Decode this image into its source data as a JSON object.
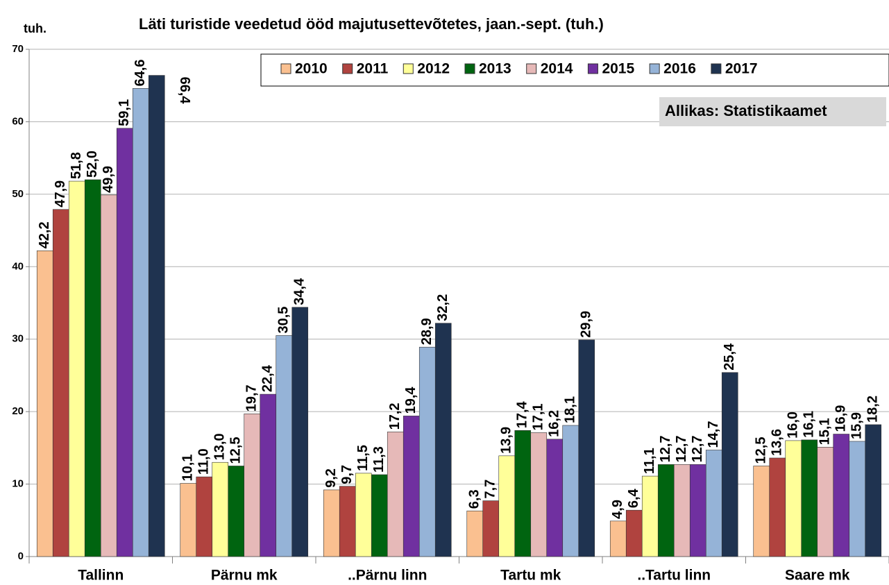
{
  "chart_data": {
    "type": "bar",
    "title": "Läti turistide veedetud ööd majutusettevõtetes, jaan.-sept. (tuh.)",
    "y_axis_label": "tuh.",
    "note": "Allikas: Statistikaamet",
    "categories": [
      "Tallinn",
      "Pärnu mk",
      "..Pärnu linn",
      "Tartu mk",
      "..Tartu linn",
      "Saare mk"
    ],
    "series": [
      {
        "name": "2010",
        "color": "#fac090",
        "values": [
          42.2,
          10.1,
          9.2,
          6.3,
          4.9,
          12.5
        ],
        "value_labels": [
          "42,2",
          "10,1",
          "9,2",
          "6,3",
          "4,9",
          "12,5"
        ]
      },
      {
        "name": "2011",
        "color": "#b0433f",
        "values": [
          47.9,
          11.0,
          9.7,
          7.7,
          6.4,
          13.6
        ],
        "value_labels": [
          "47,9",
          "11,0",
          "9,7",
          "7,7",
          "6,4",
          "13,6"
        ]
      },
      {
        "name": "2012",
        "color": "#ffff99",
        "values": [
          51.8,
          13.0,
          11.5,
          13.9,
          11.1,
          16.0
        ],
        "value_labels": [
          "51,8",
          "13,0",
          "11,5",
          "13,9",
          "11,1",
          "16,0"
        ]
      },
      {
        "name": "2013",
        "color": "#006410",
        "values": [
          52.0,
          12.5,
          11.3,
          17.4,
          12.7,
          16.1
        ],
        "value_labels": [
          "52,0",
          "12,5",
          "11,3",
          "17,4",
          "12,7",
          "16,1"
        ]
      },
      {
        "name": "2014",
        "color": "#e6b9b8",
        "values": [
          49.9,
          19.7,
          17.2,
          17.1,
          12.7,
          15.1
        ],
        "value_labels": [
          "49,9",
          "19,7",
          "17,2",
          "17,1",
          "12,7",
          "15,1"
        ]
      },
      {
        "name": "2015",
        "color": "#7030a0",
        "values": [
          59.1,
          22.4,
          19.4,
          16.2,
          12.7,
          16.9
        ],
        "value_labels": [
          "59,1",
          "22,4",
          "19,4",
          "16,2",
          "12,7",
          "16,9"
        ]
      },
      {
        "name": "2016",
        "color": "#95b3d7",
        "values": [
          64.6,
          30.5,
          28.9,
          18.1,
          14.7,
          15.9
        ],
        "value_labels": [
          "64,6",
          "30,5",
          "28,9",
          "18,1",
          "14,7",
          "15,9"
        ]
      },
      {
        "name": "2017",
        "color": "#1f3350",
        "values": [
          66.4,
          34.4,
          32.2,
          29.9,
          25.4,
          18.2
        ],
        "value_labels": [
          "66,4",
          "34,4",
          "32,2",
          "29,9",
          "25,4",
          "18,2"
        ]
      }
    ],
    "ylim": [
      0,
      70
    ],
    "yticks": [
      0,
      10,
      20,
      30,
      40,
      50,
      60,
      70
    ],
    "grid": true,
    "legend": "top-right"
  }
}
